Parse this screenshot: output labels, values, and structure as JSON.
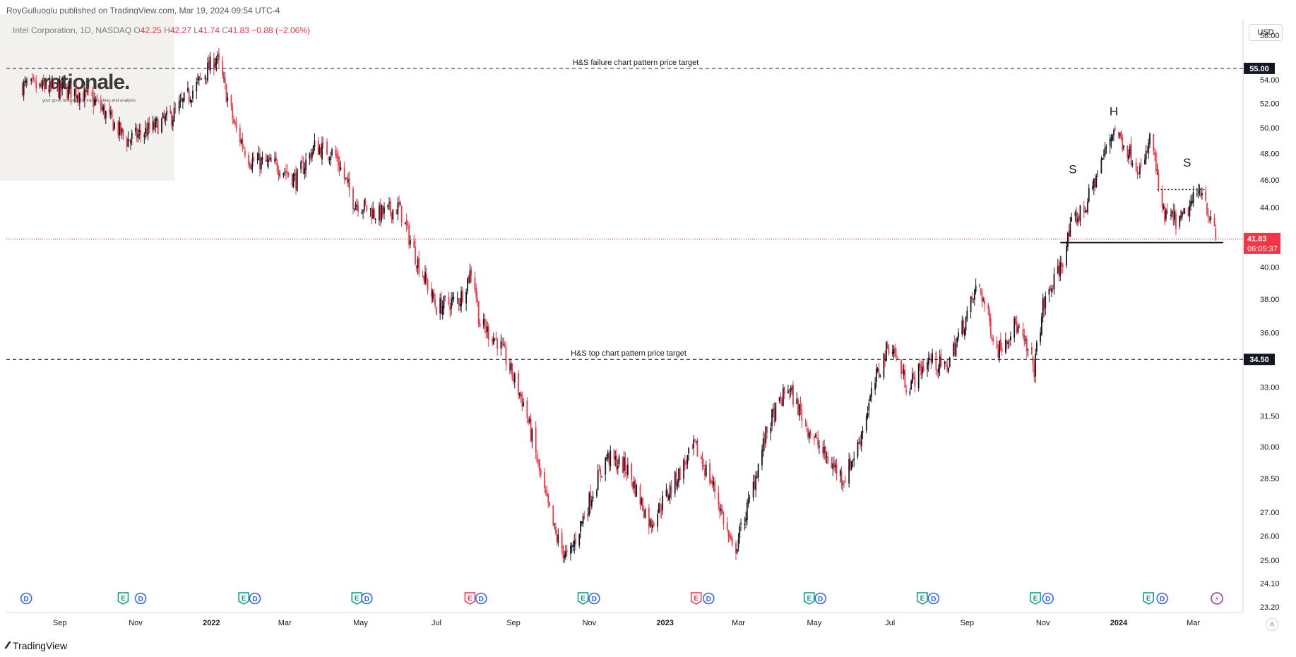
{
  "header": {
    "published": "RoyGulluoglu published on TradingView.com, Mar 19, 2024 09:54 UTC-4",
    "symbol": "Intel Corporation, 1D, NASDAQ",
    "ohlc_prefix_o": "O",
    "open": "42.25",
    "ohlc_prefix_h": "H",
    "high": "42.27",
    "ohlc_prefix_l": "L",
    "low": "41.74",
    "ohlc_prefix_c": "C",
    "close": "41.83",
    "change": "−0.88 (−2.06%)"
  },
  "currency": "USD",
  "watermark": {
    "title": "rationale.",
    "subtitle": "your go-to resource for trading ideas and analysis."
  },
  "footer": {
    "brand": "TradingView",
    "auto_label": "A"
  },
  "colors": {
    "up": "#131722",
    "down": "#f23645",
    "accent": "#f23645",
    "grid": "#f0f3fa"
  },
  "chart_data": {
    "type": "candlestick",
    "symbol": "INTC",
    "scale": "log",
    "ylim": [
      23.2,
      60
    ],
    "y_ticks": [
      "23.20",
      "24.10",
      "25.00",
      "26.00",
      "27.00",
      "28.50",
      "30.00",
      "31.50",
      "33.00",
      "34.50",
      "36.00",
      "38.00",
      "40.00",
      "44.00",
      "46.00",
      "48.00",
      "50.00",
      "52.00",
      "54.00",
      "55.00",
      "58.00"
    ],
    "x_ticks": [
      "Sep",
      "Nov",
      "2022",
      "Mar",
      "May",
      "Jul",
      "Sep",
      "Nov",
      "2023",
      "Mar",
      "May",
      "Jul",
      "Sep",
      "Nov",
      "2024",
      "Mar"
    ],
    "x_tick_bold": [
      "2022",
      "2023",
      "2024"
    ],
    "price_path": [
      [
        "2021-08-01",
        53.5
      ],
      [
        "2021-09-15",
        53.0
      ],
      [
        "2021-10-01",
        52.0
      ],
      [
        "2021-10-25",
        49.0
      ],
      [
        "2021-11-15",
        50.0
      ],
      [
        "2021-12-01",
        51.0
      ],
      [
        "2021-12-20",
        53.5
      ],
      [
        "2022-01-05",
        56.0
      ],
      [
        "2022-01-20",
        50.0
      ],
      [
        "2022-02-01",
        47.5
      ],
      [
        "2022-02-25",
        47.0
      ],
      [
        "2022-03-10",
        46.0
      ],
      [
        "2022-03-25",
        48.5
      ],
      [
        "2022-04-10",
        48.0
      ],
      [
        "2022-04-25",
        44.5
      ],
      [
        "2022-05-15",
        43.5
      ],
      [
        "2022-06-01",
        44.0
      ],
      [
        "2022-06-15",
        40.5
      ],
      [
        "2022-07-01",
        37.5
      ],
      [
        "2022-07-20",
        38.0
      ],
      [
        "2022-07-30",
        40.0
      ],
      [
        "2022-08-05",
        36.5
      ],
      [
        "2022-08-20",
        35.5
      ],
      [
        "2022-09-10",
        32.0
      ],
      [
        "2022-09-25",
        28.0
      ],
      [
        "2022-10-05",
        26.0
      ],
      [
        "2022-10-15",
        25.0
      ],
      [
        "2022-11-01",
        27.5
      ],
      [
        "2022-11-15",
        29.5
      ],
      [
        "2022-12-01",
        29.0
      ],
      [
        "2022-12-20",
        26.5
      ],
      [
        "2023-01-05",
        28.0
      ],
      [
        "2023-01-25",
        30.0
      ],
      [
        "2023-02-10",
        28.0
      ],
      [
        "2023-02-25",
        25.2
      ],
      [
        "2023-03-10",
        27.5
      ],
      [
        "2023-03-25",
        31.0
      ],
      [
        "2023-04-10",
        33.0
      ],
      [
        "2023-04-25",
        31.0
      ],
      [
        "2023-05-10",
        29.5
      ],
      [
        "2023-05-25",
        28.5
      ],
      [
        "2023-06-05",
        30.0
      ],
      [
        "2023-06-20",
        33.5
      ],
      [
        "2023-07-01",
        35.5
      ],
      [
        "2023-07-15",
        33.0
      ],
      [
        "2023-08-01",
        34.5
      ],
      [
        "2023-08-15",
        34.0
      ],
      [
        "2023-09-01",
        37.0
      ],
      [
        "2023-09-10",
        39.0
      ],
      [
        "2023-09-25",
        35.0
      ],
      [
        "2023-10-10",
        36.5
      ],
      [
        "2023-10-25",
        34.0
      ],
      [
        "2023-11-01",
        37.5
      ],
      [
        "2023-11-15",
        40.0
      ],
      [
        "2023-11-25",
        43.0
      ],
      [
        "2023-12-05",
        44.0
      ],
      [
        "2023-12-15",
        46.5
      ],
      [
        "2023-12-28",
        50.0
      ],
      [
        "2024-01-10",
        48.0
      ],
      [
        "2024-01-20",
        46.5
      ],
      [
        "2024-01-27",
        49.5
      ],
      [
        "2024-02-05",
        43.5
      ],
      [
        "2024-02-20",
        43.0
      ],
      [
        "2024-03-01",
        44.5
      ],
      [
        "2024-03-08",
        45.5
      ],
      [
        "2024-03-15",
        43.0
      ],
      [
        "2024-03-19",
        41.83
      ]
    ],
    "horizontal_lines": [
      {
        "price": 55.0,
        "label": "H&S failure chart pattern price target",
        "style": "dashed",
        "price_label": "55.00"
      },
      {
        "price": 34.5,
        "label": "H&S top chart pattern price target",
        "style": "dashed",
        "price_label": "34.50"
      }
    ],
    "neckline": {
      "price": 41.6,
      "from": "2023-11-15",
      "to": "2024-03-25"
    },
    "resistance_dotted": {
      "price": 45.3,
      "from": "2024-02-01",
      "to": "2024-03-10"
    },
    "pattern_labels": [
      {
        "text": "S",
        "date": "2023-11-25",
        "price": 46.5
      },
      {
        "text": "H",
        "date": "2023-12-28",
        "price": 51.0
      },
      {
        "text": "S",
        "date": "2024-02-25",
        "price": 47.0
      }
    ],
    "last_price": {
      "value": "41.83",
      "countdown": "06:05:37"
    },
    "events": [
      {
        "date": "2021-08-05",
        "type": "D"
      },
      {
        "date": "2021-10-22",
        "type": "E"
      },
      {
        "date": "2021-11-05",
        "type": "D"
      },
      {
        "date": "2022-01-27",
        "type": "E"
      },
      {
        "date": "2022-02-05",
        "type": "D"
      },
      {
        "date": "2022-04-28",
        "type": "E"
      },
      {
        "date": "2022-05-06",
        "type": "D"
      },
      {
        "date": "2022-07-28",
        "type": "E",
        "neg": true
      },
      {
        "date": "2022-08-06",
        "type": "D"
      },
      {
        "date": "2022-10-27",
        "type": "E"
      },
      {
        "date": "2022-11-05",
        "type": "D"
      },
      {
        "date": "2023-01-26",
        "type": "E",
        "neg": true
      },
      {
        "date": "2023-02-05",
        "type": "D"
      },
      {
        "date": "2023-04-27",
        "type": "E"
      },
      {
        "date": "2023-05-06",
        "type": "D"
      },
      {
        "date": "2023-07-27",
        "type": "E"
      },
      {
        "date": "2023-08-05",
        "type": "D"
      },
      {
        "date": "2023-10-26",
        "type": "E"
      },
      {
        "date": "2023-11-05",
        "type": "D"
      },
      {
        "date": "2024-01-25",
        "type": "E"
      },
      {
        "date": "2024-02-05",
        "type": "D"
      },
      {
        "date": "2024-03-20",
        "type": "bolt"
      }
    ]
  }
}
